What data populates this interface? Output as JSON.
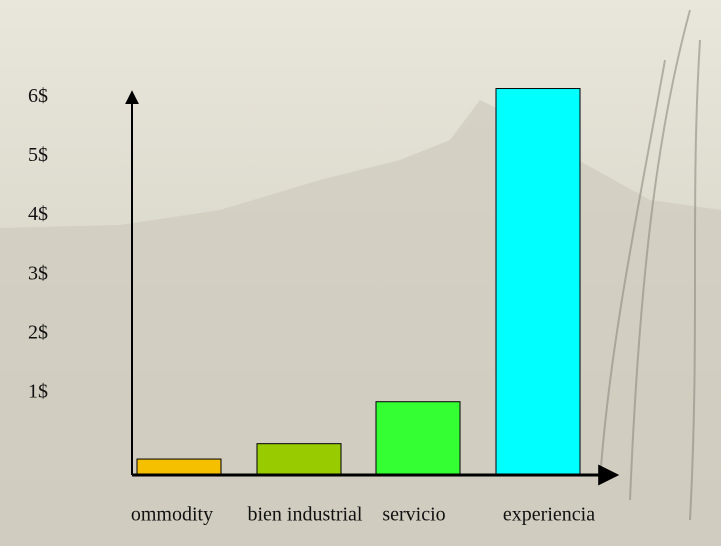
{
  "chart_data": {
    "type": "bar",
    "categories": [
      "ommodity",
      "bien industrial",
      "servicio",
      "experiencia"
    ],
    "values": [
      0.27,
      0.53,
      1.24,
      6.54
    ],
    "colors": [
      "#f5c000",
      "#99cc00",
      "#33ff33",
      "#00ffff"
    ],
    "ylim": [
      0,
      6.6
    ],
    "yticks": [
      {
        "value": 1,
        "label": "1$"
      },
      {
        "value": 2,
        "label": "2$"
      },
      {
        "value": 3,
        "label": "3$"
      },
      {
        "value": 4,
        "label": "4$"
      },
      {
        "value": 5,
        "label": "5$"
      },
      {
        "value": 6,
        "label": "6$"
      }
    ],
    "grid": false
  }
}
